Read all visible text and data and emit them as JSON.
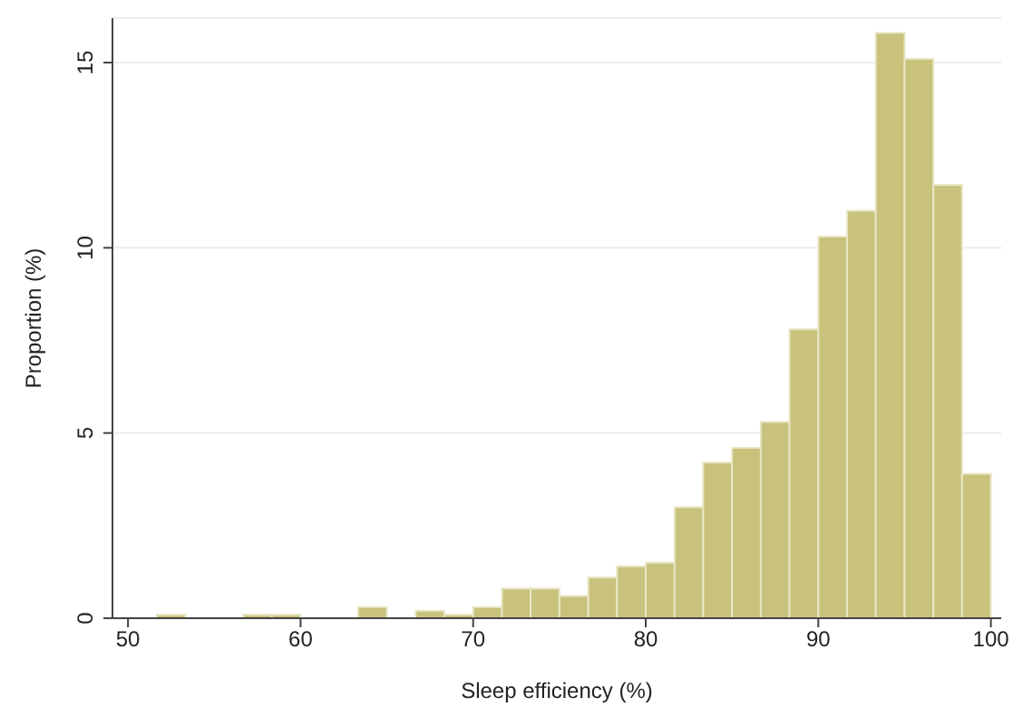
{
  "chart_data": {
    "type": "histogram",
    "xlabel": "Sleep efficiency (%)",
    "ylabel": "Proportion (%)",
    "bins": [
      51.67,
      53.33,
      55,
      56.67,
      58.33,
      60,
      61.67,
      63.33,
      65,
      66.67,
      68.33,
      70,
      71.67,
      73.33,
      75,
      76.67,
      78.33,
      80,
      81.67,
      83.33,
      85,
      86.67,
      88.33,
      90,
      91.67,
      93.33,
      95,
      96.67,
      98.33,
      100
    ],
    "values": [
      0.1,
      0,
      0,
      0.1,
      0.1,
      0,
      0,
      0.3,
      0,
      0.2,
      0.1,
      0.3,
      0.8,
      0.8,
      0.6,
      1.1,
      1.4,
      1.5,
      3.0,
      4.2,
      4.6,
      5.3,
      7.8,
      10.3,
      11.0,
      15.8,
      15.1,
      11.7,
      3.9
    ],
    "color": "#c8c27c",
    "xlim": [
      49.1,
      100.6
    ],
    "xticks": [
      50,
      60,
      70,
      80,
      90,
      100
    ],
    "ylim": [
      0,
      16.2
    ],
    "yticks": [
      0,
      5,
      10,
      15
    ],
    "grid": "y"
  }
}
